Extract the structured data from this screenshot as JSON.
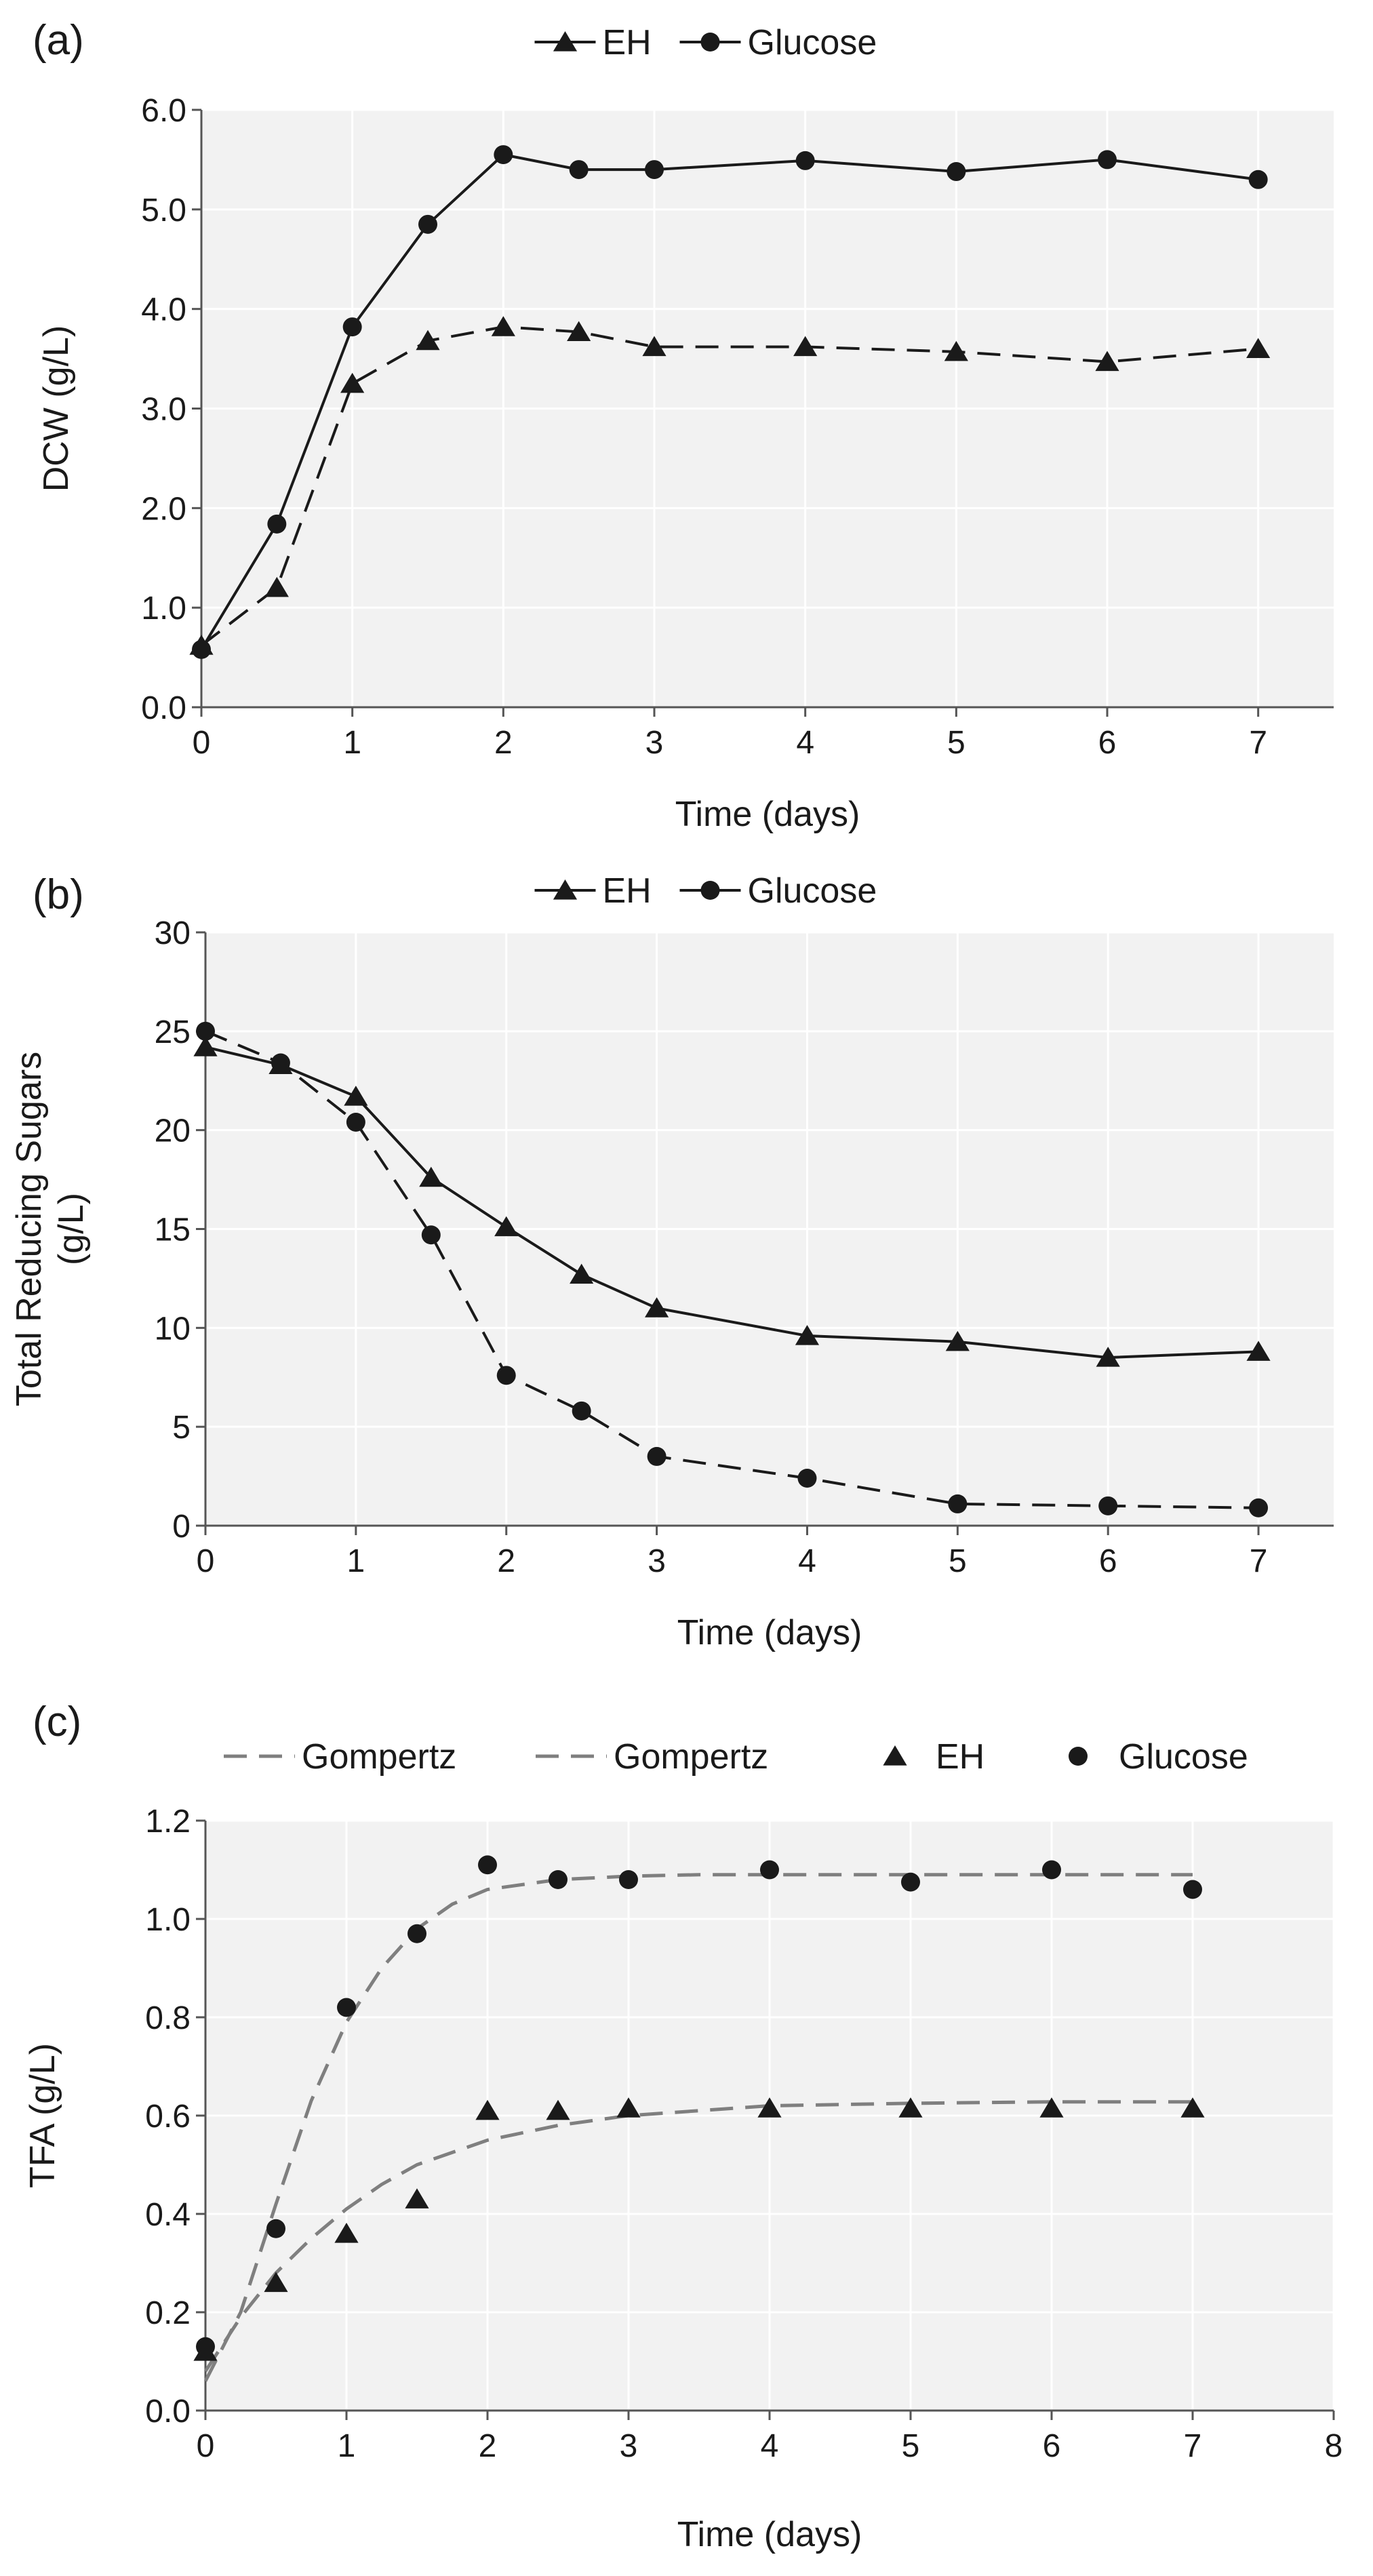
{
  "colors": {
    "plot_bg": "#f2f2f2",
    "grid": "#ffffff",
    "axis": "#555555",
    "series": "#1a1a1a",
    "fit": "#7f7f7f"
  },
  "chart_data": [
    {
      "panel": "(a)",
      "type": "line",
      "xlabel": "Time (days)",
      "ylabel": "DCW (g/L)",
      "xlim": [
        0,
        7.5
      ],
      "ylim": [
        0,
        6
      ],
      "xticks": [
        0,
        1,
        2,
        3,
        4,
        5,
        6,
        7
      ],
      "yticks": [
        0,
        1,
        2,
        3,
        4,
        5,
        6
      ],
      "ydecimals": 1,
      "legend_position": "top-center",
      "series": [
        {
          "name": "EH",
          "marker": "triangle",
          "line": "dashed",
          "x": [
            0,
            0.5,
            1,
            1.5,
            2,
            2.5,
            3,
            4,
            5,
            6,
            7
          ],
          "y": [
            0.62,
            1.2,
            3.25,
            3.68,
            3.82,
            3.77,
            3.62,
            3.62,
            3.57,
            3.47,
            3.6
          ]
        },
        {
          "name": "Glucose",
          "marker": "circle",
          "line": "solid",
          "x": [
            0,
            0.5,
            1,
            1.5,
            2,
            2.5,
            3,
            4,
            5,
            6,
            7
          ],
          "y": [
            0.58,
            1.84,
            3.82,
            4.85,
            5.55,
            5.4,
            5.4,
            5.49,
            5.38,
            5.5,
            5.3
          ]
        }
      ]
    },
    {
      "panel": "(b)",
      "type": "line",
      "xlabel": "Time (days)",
      "ylabel": "Total Reducing Sugars (g/L)",
      "ylabel_lines": [
        "Total Reducing Sugars",
        "(g/L)"
      ],
      "xlim": [
        0,
        7.5
      ],
      "ylim": [
        0,
        30
      ],
      "xticks": [
        0,
        1,
        2,
        3,
        4,
        5,
        6,
        7
      ],
      "yticks": [
        0,
        5,
        10,
        15,
        20,
        25,
        30
      ],
      "ydecimals": 0,
      "legend_position": "top-center",
      "series": [
        {
          "name": "EH",
          "marker": "triangle",
          "line": "solid",
          "x": [
            0,
            0.5,
            1,
            1.5,
            2,
            2.5,
            3,
            4,
            5,
            6,
            7
          ],
          "y": [
            24.2,
            23.3,
            21.7,
            17.6,
            15.1,
            12.7,
            11.0,
            9.6,
            9.3,
            8.5,
            8.8
          ]
        },
        {
          "name": "Glucose",
          "marker": "circle",
          "line": "dashed",
          "x": [
            0,
            0.5,
            1,
            1.5,
            2,
            2.5,
            3,
            4,
            5,
            6,
            7
          ],
          "y": [
            25.0,
            23.4,
            20.4,
            14.7,
            7.6,
            5.8,
            3.5,
            2.4,
            1.1,
            1.0,
            0.9
          ]
        }
      ]
    },
    {
      "panel": "(c)",
      "type": "scatter",
      "xlabel": "Time (days)",
      "ylabel": "TFA (g/L)",
      "xlim": [
        0,
        8
      ],
      "ylim": [
        0,
        1.2
      ],
      "xticks": [
        0,
        1,
        2,
        3,
        4,
        5,
        6,
        7,
        8
      ],
      "yticks": [
        0,
        0.2,
        0.4,
        0.6,
        0.8,
        1.0,
        1.2
      ],
      "ydecimals": 1,
      "legend_position": "top",
      "series": [
        {
          "name": "Gompertz",
          "kind": "fit",
          "fit_for": "EH",
          "x": [
            0,
            0.25,
            0.5,
            0.75,
            1,
            1.25,
            1.5,
            2,
            2.5,
            3,
            3.5,
            4,
            5,
            6,
            7
          ],
          "y": [
            0.08,
            0.19,
            0.28,
            0.35,
            0.41,
            0.46,
            0.5,
            0.55,
            0.58,
            0.6,
            0.61,
            0.62,
            0.625,
            0.628,
            0.628
          ]
        },
        {
          "name": "Gompertz",
          "kind": "fit",
          "fit_for": "Glucose",
          "x": [
            0,
            0.25,
            0.5,
            0.75,
            1,
            1.25,
            1.5,
            1.75,
            2,
            2.5,
            3,
            3.5,
            4,
            5,
            6,
            7
          ],
          "y": [
            0.06,
            0.2,
            0.42,
            0.63,
            0.79,
            0.9,
            0.98,
            1.03,
            1.06,
            1.08,
            1.087,
            1.09,
            1.09,
            1.09,
            1.09,
            1.09
          ]
        },
        {
          "name": "EH",
          "marker": "triangle",
          "kind": "points",
          "x": [
            0,
            0.5,
            1,
            1.5,
            2,
            2.5,
            3,
            4,
            5,
            6,
            7
          ],
          "y": [
            0.12,
            0.26,
            0.36,
            0.43,
            0.61,
            0.61,
            0.615,
            0.615,
            0.615,
            0.615,
            0.615
          ]
        },
        {
          "name": "Glucose",
          "marker": "circle",
          "kind": "points",
          "x": [
            0,
            0.5,
            1,
            1.5,
            2,
            2.5,
            3,
            4,
            5,
            6,
            7
          ],
          "y": [
            0.13,
            0.37,
            0.82,
            0.97,
            1.11,
            1.08,
            1.08,
            1.1,
            1.075,
            1.1,
            1.06
          ]
        }
      ]
    }
  ]
}
